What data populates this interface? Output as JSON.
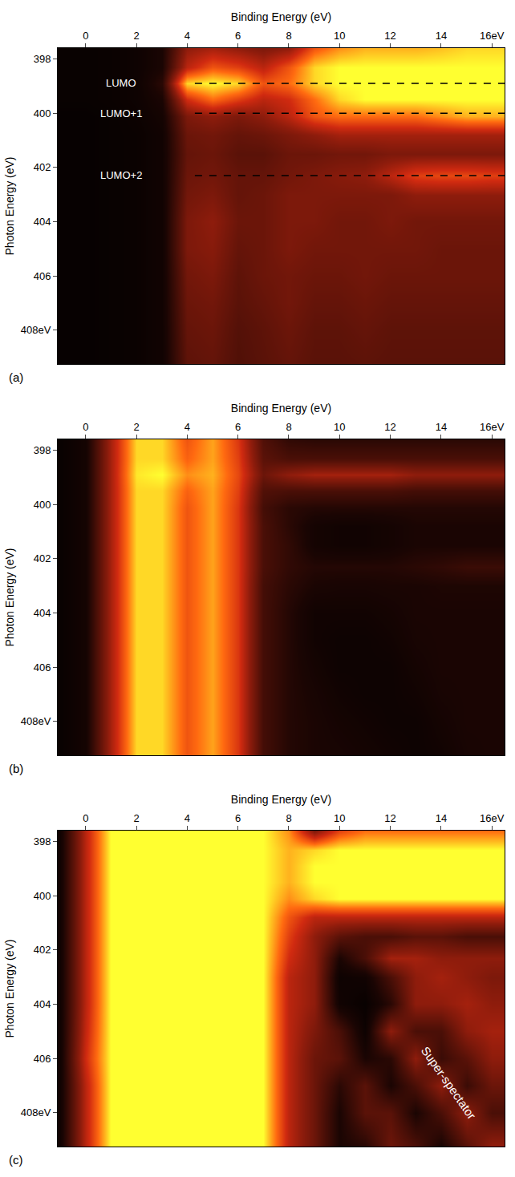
{
  "chart_data": [
    {
      "type": "heatmap",
      "panel_label": "(a)",
      "x_label": "Binding Energy (eV)",
      "y_label": "Photon Energy (eV)",
      "xlim": [
        -1.1,
        16.5
      ],
      "ylim": [
        409.25,
        397.6
      ],
      "xticks": [
        0,
        2,
        4,
        6,
        8,
        10,
        12,
        14,
        {
          "value": 16,
          "label": "16eV"
        }
      ],
      "yticks": [
        398,
        400,
        402,
        404,
        406,
        {
          "value": 408,
          "label": "408eV"
        }
      ],
      "zlim": [
        0,
        1
      ],
      "annotations": [
        {
          "text": "LUMO",
          "x": 1.4,
          "y": 398.9,
          "line_x": [
            4.3,
            16.5
          ]
        },
        {
          "text": "LUMO+1",
          "x": 1.4,
          "y": 400.0,
          "line_x": [
            4.3,
            16.5
          ]
        },
        {
          "text": "LUMO+2",
          "x": 1.4,
          "y": 402.3,
          "line_x": [
            4.3,
            16.5
          ]
        }
      ],
      "x": [
        -1,
        0,
        1,
        2,
        3,
        4,
        5,
        6,
        7,
        8,
        9,
        10,
        11,
        12,
        13,
        14,
        15,
        16
      ],
      "y": [
        397.6,
        398.3,
        398.9,
        399.5,
        400.1,
        400.8,
        401.5,
        402.3,
        403,
        404,
        405,
        406,
        407,
        408,
        409.2
      ],
      "z": [
        [
          0.05,
          0.05,
          0.06,
          0.08,
          0.15,
          0.5,
          0.55,
          0.5,
          0.45,
          0.5,
          0.75,
          0.85,
          0.9,
          0.9,
          0.9,
          0.92,
          0.95,
          0.95
        ],
        [
          0.05,
          0.05,
          0.06,
          0.08,
          0.15,
          0.6,
          0.75,
          0.7,
          0.6,
          0.75,
          0.95,
          1,
          1,
          1,
          1,
          1,
          1,
          1
        ],
        [
          0.05,
          0.05,
          0.06,
          0.08,
          0.2,
          0.95,
          1,
          0.95,
          0.75,
          0.8,
          0.95,
          1,
          1,
          1,
          1,
          1,
          1,
          1
        ],
        [
          0.05,
          0.05,
          0.06,
          0.08,
          0.15,
          0.65,
          0.8,
          0.7,
          0.6,
          0.65,
          0.8,
          0.95,
          1,
          1,
          1,
          1,
          1,
          1
        ],
        [
          0.04,
          0.04,
          0.05,
          0.07,
          0.12,
          0.45,
          0.5,
          0.45,
          0.5,
          0.6,
          0.75,
          0.8,
          0.8,
          0.8,
          0.8,
          0.85,
          0.9,
          0.9
        ],
        [
          0.04,
          0.04,
          0.05,
          0.06,
          0.1,
          0.4,
          0.42,
          0.38,
          0.4,
          0.45,
          0.5,
          0.55,
          0.55,
          0.55,
          0.55,
          0.55,
          0.55,
          0.55
        ],
        [
          0.04,
          0.04,
          0.05,
          0.06,
          0.1,
          0.38,
          0.4,
          0.35,
          0.35,
          0.4,
          0.4,
          0.42,
          0.42,
          0.45,
          0.45,
          0.45,
          0.45,
          0.45
        ],
        [
          0.04,
          0.04,
          0.05,
          0.06,
          0.1,
          0.4,
          0.42,
          0.38,
          0.38,
          0.42,
          0.45,
          0.48,
          0.5,
          0.6,
          0.7,
          0.72,
          0.72,
          0.7
        ],
        [
          0.04,
          0.04,
          0.05,
          0.06,
          0.1,
          0.42,
          0.45,
          0.38,
          0.4,
          0.45,
          0.45,
          0.45,
          0.45,
          0.45,
          0.5,
          0.5,
          0.5,
          0.5
        ],
        [
          0.04,
          0.04,
          0.05,
          0.06,
          0.1,
          0.45,
          0.5,
          0.4,
          0.4,
          0.45,
          0.45,
          0.42,
          0.42,
          0.45,
          0.42,
          0.42,
          0.42,
          0.42
        ],
        [
          0.04,
          0.04,
          0.05,
          0.06,
          0.1,
          0.45,
          0.48,
          0.38,
          0.4,
          0.45,
          0.42,
          0.42,
          0.42,
          0.42,
          0.42,
          0.4,
          0.4,
          0.4
        ],
        [
          0.04,
          0.04,
          0.05,
          0.06,
          0.1,
          0.42,
          0.45,
          0.36,
          0.4,
          0.42,
          0.4,
          0.4,
          0.42,
          0.4,
          0.4,
          0.4,
          0.4,
          0.4
        ],
        [
          0.04,
          0.04,
          0.05,
          0.06,
          0.1,
          0.4,
          0.42,
          0.35,
          0.38,
          0.42,
          0.38,
          0.38,
          0.4,
          0.38,
          0.38,
          0.38,
          0.38,
          0.38
        ],
        [
          0.04,
          0.04,
          0.05,
          0.06,
          0.1,
          0.38,
          0.4,
          0.33,
          0.36,
          0.4,
          0.36,
          0.36,
          0.38,
          0.36,
          0.36,
          0.36,
          0.36,
          0.36
        ],
        [
          0.04,
          0.04,
          0.05,
          0.06,
          0.1,
          0.36,
          0.38,
          0.32,
          0.35,
          0.38,
          0.35,
          0.35,
          0.36,
          0.35,
          0.35,
          0.35,
          0.35,
          0.35
        ]
      ]
    },
    {
      "type": "heatmap",
      "panel_label": "(b)",
      "x_label": "Binding Energy (eV)",
      "y_label": "Photon Energy (eV)",
      "xlim": [
        -1.1,
        16.5
      ],
      "ylim": [
        409.25,
        397.6
      ],
      "xticks": [
        0,
        2,
        4,
        6,
        8,
        10,
        12,
        14,
        {
          "value": 16,
          "label": "16eV"
        }
      ],
      "yticks": [
        398,
        400,
        402,
        404,
        406,
        {
          "value": 408,
          "label": "408eV"
        }
      ],
      "zlim": [
        0,
        1
      ],
      "annotations": [],
      "x": [
        -1,
        0,
        1,
        2,
        3,
        4,
        5,
        6,
        7,
        8,
        9,
        10,
        11,
        12,
        13,
        14,
        15,
        16
      ],
      "y": [
        397.6,
        398.3,
        398.9,
        399.5,
        400.1,
        400.8,
        401.5,
        402.3,
        403,
        404,
        405,
        406,
        407,
        408,
        409.2
      ],
      "z": [
        [
          0.05,
          0.12,
          0.55,
          0.95,
          0.95,
          0.75,
          0.88,
          0.68,
          0.32,
          0.22,
          0.2,
          0.2,
          0.2,
          0.2,
          0.2,
          0.2,
          0.2,
          0.2
        ],
        [
          0.05,
          0.12,
          0.55,
          0.95,
          0.95,
          0.78,
          0.88,
          0.7,
          0.35,
          0.3,
          0.3,
          0.3,
          0.3,
          0.3,
          0.3,
          0.3,
          0.3,
          0.3
        ],
        [
          0.05,
          0.12,
          0.55,
          0.97,
          1,
          0.85,
          0.9,
          0.72,
          0.4,
          0.5,
          0.55,
          0.55,
          0.55,
          0.55,
          0.5,
          0.5,
          0.5,
          0.5
        ],
        [
          0.05,
          0.12,
          0.55,
          0.95,
          0.95,
          0.78,
          0.88,
          0.7,
          0.32,
          0.3,
          0.3,
          0.3,
          0.3,
          0.3,
          0.28,
          0.28,
          0.28,
          0.28
        ],
        [
          0.05,
          0.12,
          0.55,
          0.95,
          0.95,
          0.75,
          0.88,
          0.68,
          0.28,
          0.2,
          0.18,
          0.18,
          0.18,
          0.18,
          0.18,
          0.18,
          0.18,
          0.18
        ],
        [
          0.05,
          0.12,
          0.55,
          0.95,
          0.95,
          0.75,
          0.88,
          0.68,
          0.3,
          0.2,
          0.12,
          0.1,
          0.1,
          0.12,
          0.15,
          0.15,
          0.15,
          0.15
        ],
        [
          0.05,
          0.12,
          0.55,
          0.95,
          0.95,
          0.75,
          0.88,
          0.68,
          0.3,
          0.22,
          0.12,
          0.1,
          0.1,
          0.12,
          0.15,
          0.15,
          0.15,
          0.15
        ],
        [
          0.05,
          0.12,
          0.55,
          0.95,
          0.95,
          0.75,
          0.88,
          0.68,
          0.3,
          0.22,
          0.18,
          0.18,
          0.18,
          0.18,
          0.2,
          0.22,
          0.25,
          0.25
        ],
        [
          0.05,
          0.12,
          0.55,
          0.95,
          0.95,
          0.75,
          0.88,
          0.68,
          0.28,
          0.2,
          0.15,
          0.14,
          0.14,
          0.15,
          0.15,
          0.16,
          0.16,
          0.16
        ],
        [
          0.05,
          0.12,
          0.55,
          0.95,
          0.95,
          0.75,
          0.88,
          0.68,
          0.28,
          0.18,
          0.1,
          0.1,
          0.1,
          0.12,
          0.15,
          0.15,
          0.15,
          0.15
        ],
        [
          0.05,
          0.12,
          0.55,
          0.95,
          0.95,
          0.75,
          0.88,
          0.68,
          0.28,
          0.18,
          0.1,
          0.08,
          0.08,
          0.1,
          0.14,
          0.15,
          0.15,
          0.15
        ],
        [
          0.05,
          0.12,
          0.55,
          0.95,
          0.95,
          0.75,
          0.88,
          0.68,
          0.28,
          0.18,
          0.12,
          0.08,
          0.08,
          0.08,
          0.12,
          0.15,
          0.15,
          0.15
        ],
        [
          0.05,
          0.12,
          0.55,
          0.95,
          0.95,
          0.75,
          0.88,
          0.68,
          0.28,
          0.18,
          0.14,
          0.1,
          0.08,
          0.08,
          0.1,
          0.14,
          0.15,
          0.15
        ],
        [
          0.05,
          0.12,
          0.55,
          0.95,
          0.95,
          0.75,
          0.88,
          0.68,
          0.28,
          0.18,
          0.15,
          0.12,
          0.1,
          0.08,
          0.08,
          0.12,
          0.15,
          0.15
        ],
        [
          0.05,
          0.12,
          0.55,
          0.95,
          0.95,
          0.75,
          0.88,
          0.68,
          0.28,
          0.18,
          0.15,
          0.14,
          0.12,
          0.1,
          0.08,
          0.1,
          0.14,
          0.15
        ]
      ]
    },
    {
      "type": "heatmap",
      "panel_label": "(c)",
      "x_label": "Binding Energy (eV)",
      "y_label": "Photon Energy (eV)",
      "xlim": [
        -1.1,
        16.5
      ],
      "ylim": [
        409.25,
        397.6
      ],
      "xticks": [
        0,
        2,
        4,
        6,
        8,
        10,
        12,
        14,
        {
          "value": 16,
          "label": "16eV"
        }
      ],
      "yticks": [
        398,
        400,
        402,
        404,
        406,
        {
          "value": 408,
          "label": "408eV"
        }
      ],
      "zlim": [
        0,
        1
      ],
      "annotations": [
        {
          "text": "Super-spectator",
          "x": 14.3,
          "y": 406.9
        }
      ],
      "x": [
        -1,
        0,
        1,
        2,
        3,
        4,
        5,
        6,
        7,
        8,
        9,
        10,
        11,
        12,
        13,
        14,
        15,
        16
      ],
      "y": [
        397.6,
        398.3,
        398.9,
        399.5,
        400.1,
        400.8,
        401.5,
        402.3,
        403,
        404,
        405,
        406,
        407,
        408,
        409.2
      ],
      "z": [
        [
          0.1,
          0.6,
          1,
          1,
          1,
          1,
          1,
          1,
          1,
          0.85,
          0.45,
          0.7,
          0.8,
          0.8,
          0.8,
          0.8,
          0.8,
          0.8
        ],
        [
          0.1,
          0.6,
          1,
          1,
          1,
          1,
          1,
          1,
          1,
          0.9,
          0.95,
          1,
          1,
          1,
          1,
          1,
          1,
          1
        ],
        [
          0.1,
          0.6,
          1,
          1,
          1,
          1,
          1,
          1,
          1,
          0.9,
          1,
          1,
          1,
          1,
          1,
          1,
          1,
          1
        ],
        [
          0.1,
          0.6,
          1,
          1,
          1,
          1,
          1,
          1,
          1,
          0.9,
          1,
          1,
          1,
          1,
          1,
          1,
          1,
          1
        ],
        [
          0.1,
          0.6,
          1,
          1,
          1,
          1,
          1,
          1,
          1,
          0.85,
          0.95,
          1,
          1,
          1,
          1,
          1,
          1,
          1
        ],
        [
          0.1,
          0.6,
          1,
          1,
          1,
          1,
          1,
          1,
          1,
          0.75,
          0.6,
          0.6,
          0.6,
          0.6,
          0.6,
          0.6,
          0.6,
          0.6
        ],
        [
          0.1,
          0.6,
          1,
          1,
          1,
          1,
          1,
          1,
          1,
          0.7,
          0.5,
          0.35,
          0.3,
          0.3,
          0.35,
          0.35,
          0.3,
          0.3
        ],
        [
          0.1,
          0.6,
          1,
          1,
          1,
          1,
          1,
          1,
          1,
          0.65,
          0.5,
          0.15,
          0.3,
          0.55,
          0.55,
          0.5,
          0.5,
          0.5
        ],
        [
          0.1,
          0.6,
          1,
          1,
          1,
          1,
          1,
          1,
          1,
          0.6,
          0.5,
          0.08,
          0.1,
          0.3,
          0.5,
          0.55,
          0.5,
          0.45
        ],
        [
          0.1,
          0.6,
          1,
          1,
          1,
          1,
          1,
          1,
          1,
          0.6,
          0.5,
          0.1,
          0.05,
          0.2,
          0.5,
          0.5,
          0.55,
          0.5
        ],
        [
          0.1,
          0.62,
          1,
          1,
          1,
          1,
          1,
          1,
          1,
          0.6,
          0.45,
          0.3,
          0.08,
          0.5,
          0.3,
          0.3,
          0.5,
          0.55
        ],
        [
          0.1,
          0.65,
          1,
          1,
          1,
          1,
          1,
          1,
          1,
          0.6,
          0.4,
          0.35,
          0.15,
          0.2,
          0.5,
          0.25,
          0.35,
          0.5
        ],
        [
          0.1,
          0.6,
          1,
          1,
          1,
          1,
          1,
          1,
          1,
          0.6,
          0.4,
          0.2,
          0.35,
          0.15,
          0.3,
          0.5,
          0.25,
          0.4
        ],
        [
          0.1,
          0.6,
          1,
          1,
          1,
          1,
          1,
          1,
          1,
          0.6,
          0.4,
          0.15,
          0.35,
          0.35,
          0.15,
          0.3,
          0.5,
          0.3
        ],
        [
          0.1,
          0.6,
          1,
          1,
          1,
          1,
          1,
          1,
          1,
          0.6,
          0.4,
          0.15,
          0.2,
          0.4,
          0.3,
          0.15,
          0.35,
          0.5
        ]
      ]
    }
  ]
}
